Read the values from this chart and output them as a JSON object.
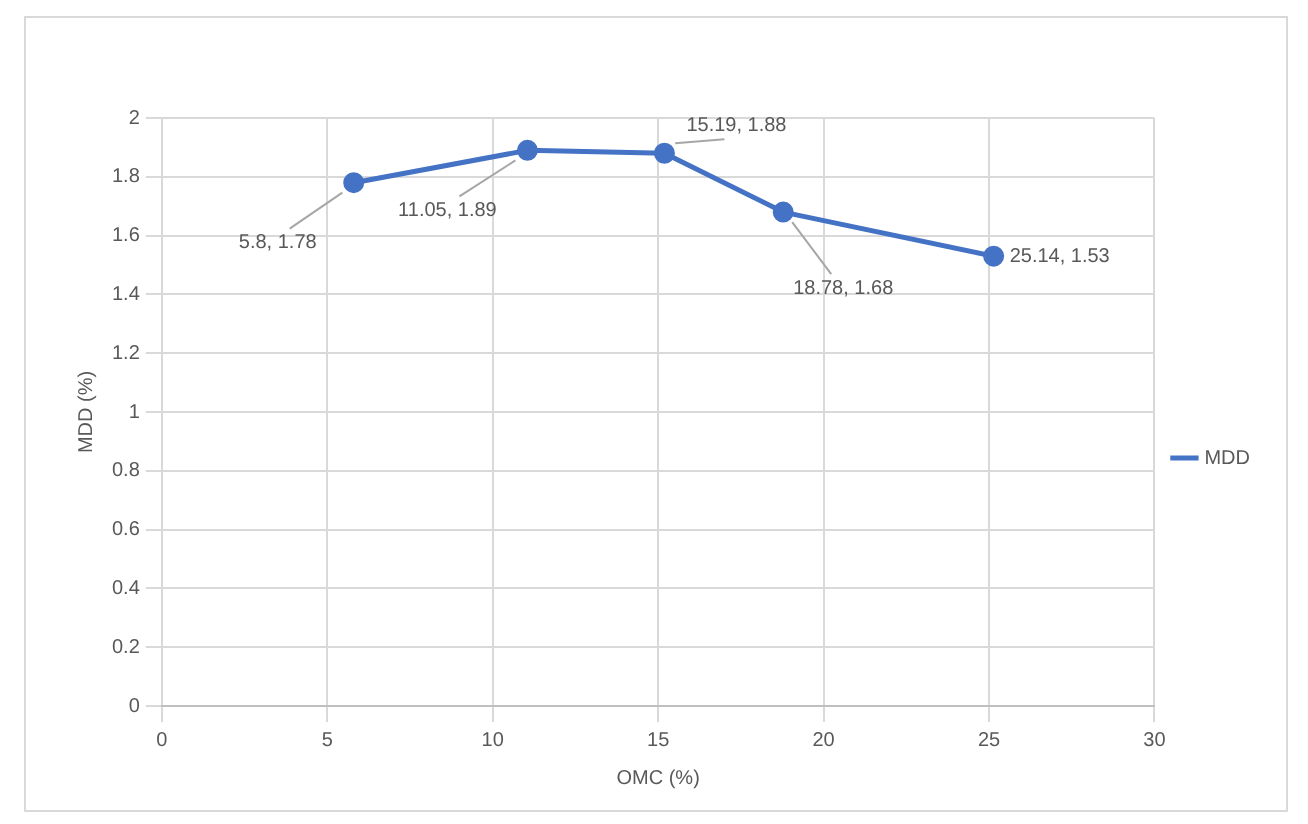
{
  "chart_data": {
    "type": "line",
    "xlabel": "OMC (%)",
    "ylabel": "MDD (%)",
    "x": [
      5.8,
      11.05,
      15.19,
      18.78,
      25.14
    ],
    "series": [
      {
        "name": "MDD",
        "color": "#4472c4",
        "values": [
          1.78,
          1.89,
          1.88,
          1.68,
          1.53
        ],
        "value_labels": [
          "5.8, 1.78",
          "11.05, 1.89",
          "15.19, 1.88",
          "18.78, 1.68",
          "25.14, 1.53"
        ]
      }
    ],
    "xlim": [
      0,
      30
    ],
    "xticks": [
      0,
      5,
      10,
      15,
      20,
      25,
      30
    ],
    "ylim": [
      0,
      2
    ],
    "yticks": [
      0,
      0.2,
      0.4,
      0.6,
      0.8,
      1,
      1.2,
      1.4,
      1.6,
      1.8,
      2
    ],
    "grid": true,
    "legend": "right",
    "marker": "circle",
    "line_style": "solid"
  }
}
